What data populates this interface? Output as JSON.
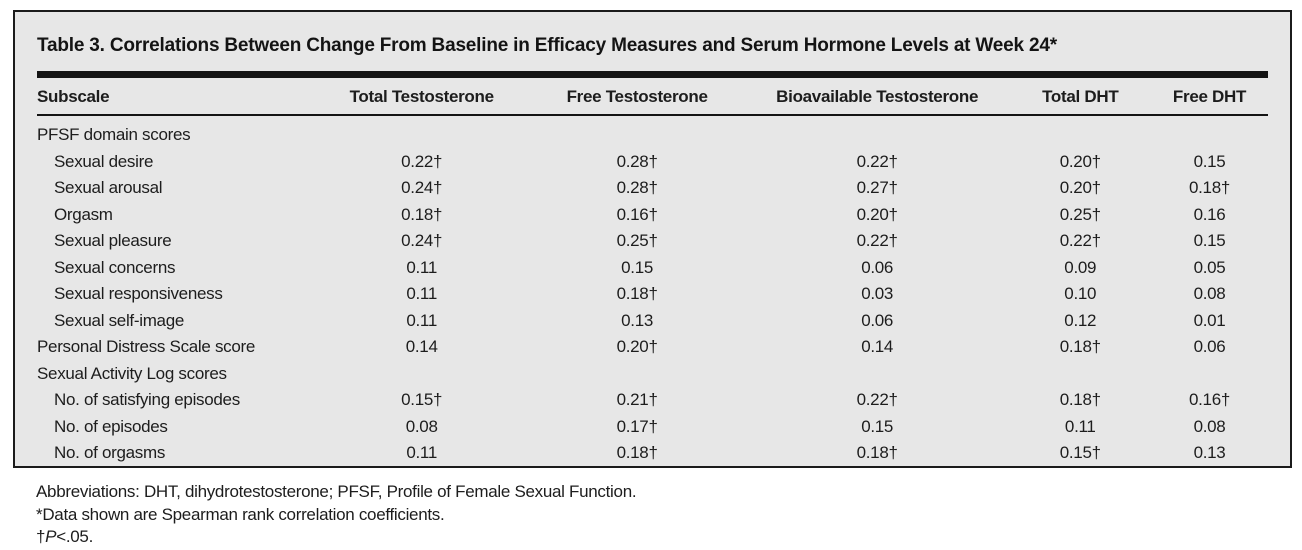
{
  "table": {
    "title": "Table 3. Correlations Between Change From Baseline in Efficacy Measures and Serum Hormone Levels at Week 24*",
    "columns": [
      "Subscale",
      "Total Testosterone",
      "Free Testosterone",
      "Bioavailable Testosterone",
      "Total DHT",
      "Free DHT"
    ],
    "rows": [
      {
        "label": "PFSF domain scores",
        "indent": false,
        "values": [
          "",
          "",
          "",
          "",
          ""
        ]
      },
      {
        "label": "Sexual desire",
        "indent": true,
        "values": [
          "0.22†",
          "0.28†",
          "0.22†",
          "0.20†",
          "0.15"
        ]
      },
      {
        "label": "Sexual arousal",
        "indent": true,
        "values": [
          "0.24†",
          "0.28†",
          "0.27†",
          "0.20†",
          "0.18†"
        ]
      },
      {
        "label": "Orgasm",
        "indent": true,
        "values": [
          "0.18†",
          "0.16†",
          "0.20†",
          "0.25†",
          "0.16"
        ]
      },
      {
        "label": "Sexual pleasure",
        "indent": true,
        "values": [
          "0.24†",
          "0.25†",
          "0.22†",
          "0.22†",
          "0.15"
        ]
      },
      {
        "label": "Sexual concerns",
        "indent": true,
        "values": [
          "0.11",
          "0.15",
          "0.06",
          "0.09",
          "0.05"
        ]
      },
      {
        "label": "Sexual responsiveness",
        "indent": true,
        "values": [
          "0.11",
          "0.18†",
          "0.03",
          "0.10",
          "0.08"
        ]
      },
      {
        "label": "Sexual self-image",
        "indent": true,
        "values": [
          "0.11",
          "0.13",
          "0.06",
          "0.12",
          "0.01"
        ]
      },
      {
        "label": "Personal Distress Scale score",
        "indent": false,
        "values": [
          "0.14",
          "0.20†",
          "0.14",
          "0.18†",
          "0.06"
        ]
      },
      {
        "label": "Sexual Activity Log scores",
        "indent": false,
        "values": [
          "",
          "",
          "",
          "",
          ""
        ]
      },
      {
        "label": "No. of satisfying episodes",
        "indent": true,
        "values": [
          "0.15†",
          "0.21†",
          "0.22†",
          "0.18†",
          "0.16†"
        ]
      },
      {
        "label": "No. of episodes",
        "indent": true,
        "values": [
          "0.08",
          "0.17†",
          "0.15",
          "0.11",
          "0.08"
        ]
      },
      {
        "label": "No. of orgasms",
        "indent": true,
        "values": [
          "0.11",
          "0.18†",
          "0.18†",
          "0.15†",
          "0.13"
        ]
      }
    ]
  },
  "footnotes": {
    "abbreviations": "Abbreviations: DHT, dihydrotestosterone; PFSF, Profile of Female Sexual Function.",
    "asterisk": "*Data shown are Spearman rank correlation coefficients.",
    "dagger_prefix": "†",
    "dagger_p": "P",
    "dagger_suffix": "<.05."
  },
  "colors": {
    "table_background": "#e7e7e7",
    "border_and_rules": "#1b1b1b",
    "text": "#1d1d1d",
    "page_background": "#ffffff"
  }
}
